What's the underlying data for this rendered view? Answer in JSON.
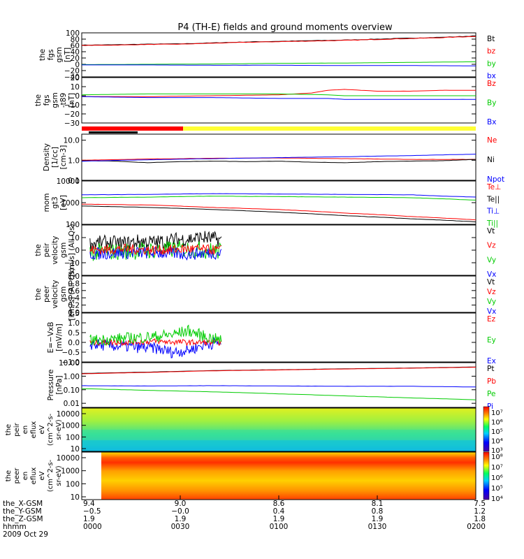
{
  "title": "P4 (TH-E) fields and ground moments overview",
  "colors": {
    "black": "#000000",
    "red": "#ff0000",
    "green": "#00cc00",
    "blue": "#0000ff",
    "yellow": "#ffff33"
  },
  "chart_data": {
    "type": "line",
    "time_range": [
      "0000",
      "0200"
    ],
    "panels": [
      {
        "ylabel": [
          "the",
          "fgs",
          "gsm",
          "[nT]"
        ],
        "ylim": [
          -40,
          100
        ],
        "ticks": [
          "100",
          "80",
          "60",
          "40",
          "20",
          "0",
          "−20",
          "−40"
        ],
        "tick_values": [
          100,
          80,
          60,
          40,
          20,
          0,
          -20,
          -40
        ],
        "legend": [
          {
            "name": "Bt",
            "color": "#000000"
          },
          {
            "name": "bz",
            "color": "#ff0000"
          },
          {
            "name": "by",
            "color": "#00cc00"
          },
          {
            "name": "bx",
            "color": "#0000ff"
          }
        ],
        "series": [
          {
            "color": "#000000",
            "x": [
              0,
              10,
              20,
              30,
              40,
              50,
              60,
              70,
              80,
              90,
              100,
              110,
              120
            ],
            "y": [
              61,
              62,
              64,
              65,
              68,
              71,
              73,
              75,
              77,
              80,
              83,
              86,
              90
            ]
          },
          {
            "color": "#ff0000",
            "x": [
              0,
              10,
              20,
              30,
              40,
              50,
              60,
              70,
              80,
              90,
              100,
              110,
              120
            ],
            "y": [
              60,
              61,
              63,
              64,
              67,
              70,
              72,
              74,
              76,
              79,
              82,
              85,
              89
            ]
          },
          {
            "color": "#00cc00",
            "x": [
              0,
              20,
              40,
              60,
              80,
              100,
              120
            ],
            "y": [
              -1,
              0,
              1,
              3,
              4,
              6,
              8
            ]
          },
          {
            "color": "#0000ff",
            "x": [
              0,
              20,
              40,
              60,
              80,
              100,
              120
            ],
            "y": [
              -2,
              -2,
              -3,
              -3,
              -4,
              -4,
              -5
            ]
          }
        ]
      },
      {
        "ylabel": [
          "the",
          "fgs",
          "gsm",
          "-t89",
          "[nT]"
        ],
        "ylim": [
          -30,
          20
        ],
        "ticks": [
          "20",
          "10",
          "0",
          "−10",
          "−20",
          "−30"
        ],
        "tick_values": [
          20,
          10,
          0,
          -10,
          -20,
          -30
        ],
        "legend": [
          {
            "name": "Bz",
            "color": "#ff0000"
          },
          {
            "name": "By",
            "color": "#00cc00"
          },
          {
            "name": "Bx",
            "color": "#0000ff"
          }
        ],
        "series": [
          {
            "color": "#ff0000",
            "x": [
              0,
              20,
              40,
              60,
              70,
              75,
              80,
              90,
              100,
              110,
              120
            ],
            "y": [
              -1,
              -1,
              0,
              1,
              3,
              6,
              7,
              5,
              5,
              6,
              6
            ]
          },
          {
            "color": "#00cc00",
            "x": [
              0,
              20,
              40,
              60,
              75,
              80,
              100,
              120
            ],
            "y": [
              1,
              2,
              2,
              2,
              1,
              0,
              0,
              0
            ]
          },
          {
            "color": "#0000ff",
            "x": [
              0,
              20,
              40,
              60,
              75,
              80,
              100,
              120
            ],
            "y": [
              -1,
              -2,
              -2,
              -3,
              -3,
              -4,
              -4,
              -4
            ]
          }
        ]
      },
      {
        "ylabel": [
          "Density",
          "[1/cc]",
          "[cm-3]"
        ],
        "log": true,
        "ylim": [
          0.1,
          20
        ],
        "ticks": [
          "10.0",
          "1.0",
          "0.1"
        ],
        "tick_values": [
          10,
          1,
          0.1
        ],
        "legend": [
          {
            "name": "Ne",
            "color": "#ff0000"
          },
          {
            "name": "Ni",
            "color": "#000000"
          },
          {
            "name": "Npot",
            "color": "#0000ff"
          }
        ],
        "series": [
          {
            "color": "#ff0000",
            "x": [
              0,
              20,
              40,
              60,
              80,
              100,
              120
            ],
            "y": [
              1.0,
              1.15,
              1.25,
              1.3,
              1.2,
              1.1,
              1.1
            ]
          },
          {
            "color": "#000000",
            "x": [
              0,
              10,
              20,
              30,
              40,
              50,
              60,
              70,
              80,
              90,
              100,
              110,
              120
            ],
            "y": [
              0.95,
              0.9,
              0.75,
              0.85,
              0.9,
              0.85,
              0.9,
              0.8,
              0.75,
              0.85,
              0.9,
              0.95,
              1.1
            ]
          },
          {
            "color": "#0000ff",
            "x": [
              0,
              20,
              40,
              60,
              80,
              100,
              120
            ],
            "y": [
              0.9,
              1.05,
              1.2,
              1.35,
              1.5,
              1.7,
              2.0
            ]
          }
        ]
      },
      {
        "ylabel": [
          "mom",
          "gt3",
          "[eV]"
        ],
        "log": true,
        "ylim": [
          100,
          10000
        ],
        "ticks": [
          "10000",
          "1000",
          "100"
        ],
        "tick_values": [
          10000,
          1000,
          100
        ],
        "legend": [
          {
            "name": "Te⊥",
            "color": "#ff0000"
          },
          {
            "name": "Te||",
            "color": "#000000"
          },
          {
            "name": "Ti⊥",
            "color": "#0000ff"
          },
          {
            "name": "Ti||",
            "color": "#00cc00"
          }
        ],
        "series": [
          {
            "color": "#0000ff",
            "x": [
              0,
              20,
              40,
              60,
              80,
              100,
              110,
              120
            ],
            "y": [
              2300,
              2400,
              2600,
              2500,
              2400,
              2300,
              2000,
              1800
            ]
          },
          {
            "color": "#00cc00",
            "x": [
              0,
              20,
              40,
              60,
              80,
              100,
              110,
              120
            ],
            "y": [
              1700,
              1800,
              2000,
              1900,
              1800,
              1700,
              1500,
              1300
            ]
          },
          {
            "color": "#ff0000",
            "x": [
              0,
              20,
              40,
              60,
              80,
              100,
              120
            ],
            "y": [
              850,
              780,
              600,
              480,
              330,
              230,
              160
            ]
          },
          {
            "color": "#000000",
            "x": [
              0,
              20,
              40,
              60,
              80,
              100,
              120
            ],
            "y": [
              700,
              600,
              480,
              360,
              250,
              180,
              130
            ]
          }
        ]
      },
      {
        "ylabel": [
          "the",
          "peir",
          "velocity",
          "gsm",
          "[km/s] (All Qs)"
        ],
        "ylim": [
          -20,
          20
        ],
        "ticks": [
          "10",
          "0",
          "−10"
        ],
        "tick_values": [
          10,
          0,
          -10
        ],
        "legend": [
          {
            "name": "Vt",
            "color": "#000000"
          },
          {
            "name": "Vz",
            "color": "#ff0000"
          },
          {
            "name": "Vy",
            "color": "#00cc00"
          },
          {
            "name": "Vx",
            "color": "#0000ff"
          }
        ],
        "series": [
          {
            "color": "#000000",
            "noise": true,
            "x": [
              0,
              5,
              10,
              15,
              20,
              25,
              30,
              35,
              40
            ],
            "y": [
              5,
              6,
              5,
              7,
              6,
              8,
              9,
              10,
              8
            ],
            "amp": 6
          },
          {
            "color": "#00cc00",
            "noise": true,
            "x": [
              0,
              10,
              20,
              30,
              40
            ],
            "y": [
              -2,
              -1,
              0,
              1,
              -1
            ],
            "amp": 7
          },
          {
            "color": "#0000ff",
            "noise": true,
            "x": [
              0,
              10,
              20,
              30,
              40
            ],
            "y": [
              -3,
              -2,
              -2,
              -3,
              -2
            ],
            "amp": 5
          },
          {
            "color": "#ff0000",
            "noise": true,
            "x": [
              0,
              10,
              20,
              30,
              40
            ],
            "y": [
              0,
              1,
              0,
              1,
              0
            ],
            "amp": 4
          }
        ]
      },
      {
        "ylabel": [
          "the",
          "peer",
          "velocity",
          "gsm",
          "[km/s] (All Qs)"
        ],
        "ylim": [
          0,
          1
        ],
        "ticks": [
          "1.0",
          "0.8",
          "0.6",
          "0.4",
          "0.2",
          "0.0"
        ],
        "tick_values": [
          1,
          0.8,
          0.6,
          0.4,
          0.2,
          0
        ],
        "legend": [
          {
            "name": "Vt",
            "color": "#000000"
          },
          {
            "name": "Vz",
            "color": "#ff0000"
          },
          {
            "name": "Vy",
            "color": "#00cc00"
          },
          {
            "name": "Vx",
            "color": "#0000ff"
          }
        ],
        "series": []
      },
      {
        "ylabel": [
          "E=−VxB",
          "[mV/m]"
        ],
        "ylim": [
          -1,
          1.5
        ],
        "ticks": [
          "1.5",
          "1.0",
          "0.5",
          "0.0",
          "−0.5",
          "−1.0"
        ],
        "tick_values": [
          1.5,
          1,
          0.5,
          0,
          -0.5,
          -1
        ],
        "legend": [
          {
            "name": "Ez",
            "color": "#ff0000"
          },
          {
            "name": "Ey",
            "color": "#00cc00"
          },
          {
            "name": "Ex",
            "color": "#0000ff"
          }
        ],
        "series": [
          {
            "color": "#0000ff",
            "noise": true,
            "x": [
              0,
              10,
              20,
              25,
              30,
              35,
              40
            ],
            "y": [
              -0.1,
              -0.2,
              -0.3,
              -0.5,
              -0.4,
              -0.1,
              0
            ],
            "amp": 0.3
          },
          {
            "color": "#ff0000",
            "noise": true,
            "x": [
              0,
              10,
              20,
              30,
              40
            ],
            "y": [
              0,
              0,
              0.05,
              0,
              0
            ],
            "amp": 0.15
          },
          {
            "color": "#00cc00",
            "noise": true,
            "x": [
              0,
              10,
              20,
              25,
              30,
              35,
              40
            ],
            "y": [
              0.1,
              0.2,
              0.3,
              0.4,
              0.6,
              0.3,
              0.1
            ],
            "amp": 0.3
          }
        ]
      },
      {
        "ylabel": [
          "Pressure",
          "[nPa]"
        ],
        "log": true,
        "ylim": [
          0.005,
          10
        ],
        "ticks": [
          "10.00",
          "1.00",
          "0.10",
          "0.01"
        ],
        "tick_values": [
          10,
          1,
          0.1,
          0.01
        ],
        "legend": [
          {
            "name": "Pt",
            "color": "#000000"
          },
          {
            "name": "Pb",
            "color": "#ff0000"
          },
          {
            "name": "Pe",
            "color": "#00cc00"
          },
          {
            "name": "Pi",
            "color": "#0000ff"
          }
        ],
        "series": [
          {
            "color": "#000000",
            "x": [
              0,
              20,
              40,
              60,
              80,
              100,
              120
            ],
            "y": [
              1.6,
              2.0,
              2.6,
              3.0,
              3.5,
              4.0,
              4.8
            ]
          },
          {
            "color": "#ff0000",
            "x": [
              0,
              20,
              40,
              60,
              80,
              100,
              120
            ],
            "y": [
              1.5,
              1.9,
              2.5,
              2.9,
              3.4,
              3.9,
              4.6
            ]
          },
          {
            "color": "#0000ff",
            "x": [
              0,
              20,
              40,
              60,
              80,
              100,
              120
            ],
            "y": [
              0.2,
              0.19,
              0.2,
              0.19,
              0.18,
              0.18,
              0.16
            ]
          },
          {
            "color": "#00cc00",
            "x": [
              0,
              20,
              40,
              60,
              80,
              100,
              120
            ],
            "y": [
              0.12,
              0.09,
              0.07,
              0.05,
              0.035,
              0.025,
              0.018
            ]
          }
        ]
      }
    ],
    "spectrograms": [
      {
        "ylabel": [
          "the",
          "peir",
          "en",
          "eflux",
          "eV",
          "(cm^2-s-",
          "sr-eV)"
        ],
        "ticks": [
          "10000",
          "1000",
          "100",
          "10"
        ],
        "colorbar": [
          "10⁷",
          "10⁶",
          "10⁵",
          "10⁴",
          "10³"
        ]
      },
      {
        "ylabel": [
          "the",
          "peer",
          "en",
          "eflux",
          "eV",
          "(cm^2-s-",
          "sr-eV)"
        ],
        "ticks": [
          "10000",
          "1000",
          "100",
          "10"
        ],
        "colorbar": [
          "10⁸",
          "10⁷",
          "10⁶",
          "10⁵",
          "10⁴"
        ]
      }
    ],
    "x_axis": {
      "row_labels": [
        "the_X-GSM",
        "the_Y-GSM",
        "the_Z-GSM",
        "hhmm",
        "2009 Oct 29"
      ],
      "columns": [
        [
          "9.4",
          "−0.5",
          "1.9",
          "0000"
        ],
        [
          "9.0",
          "−0.0",
          "1.9",
          "0030"
        ],
        [
          "8.6",
          "0.4",
          "1.9",
          "0100"
        ],
        [
          "8.1",
          "0.8",
          "1.9",
          "0130"
        ],
        [
          "7.5",
          "1.2",
          "1.8",
          "0200"
        ]
      ]
    }
  }
}
